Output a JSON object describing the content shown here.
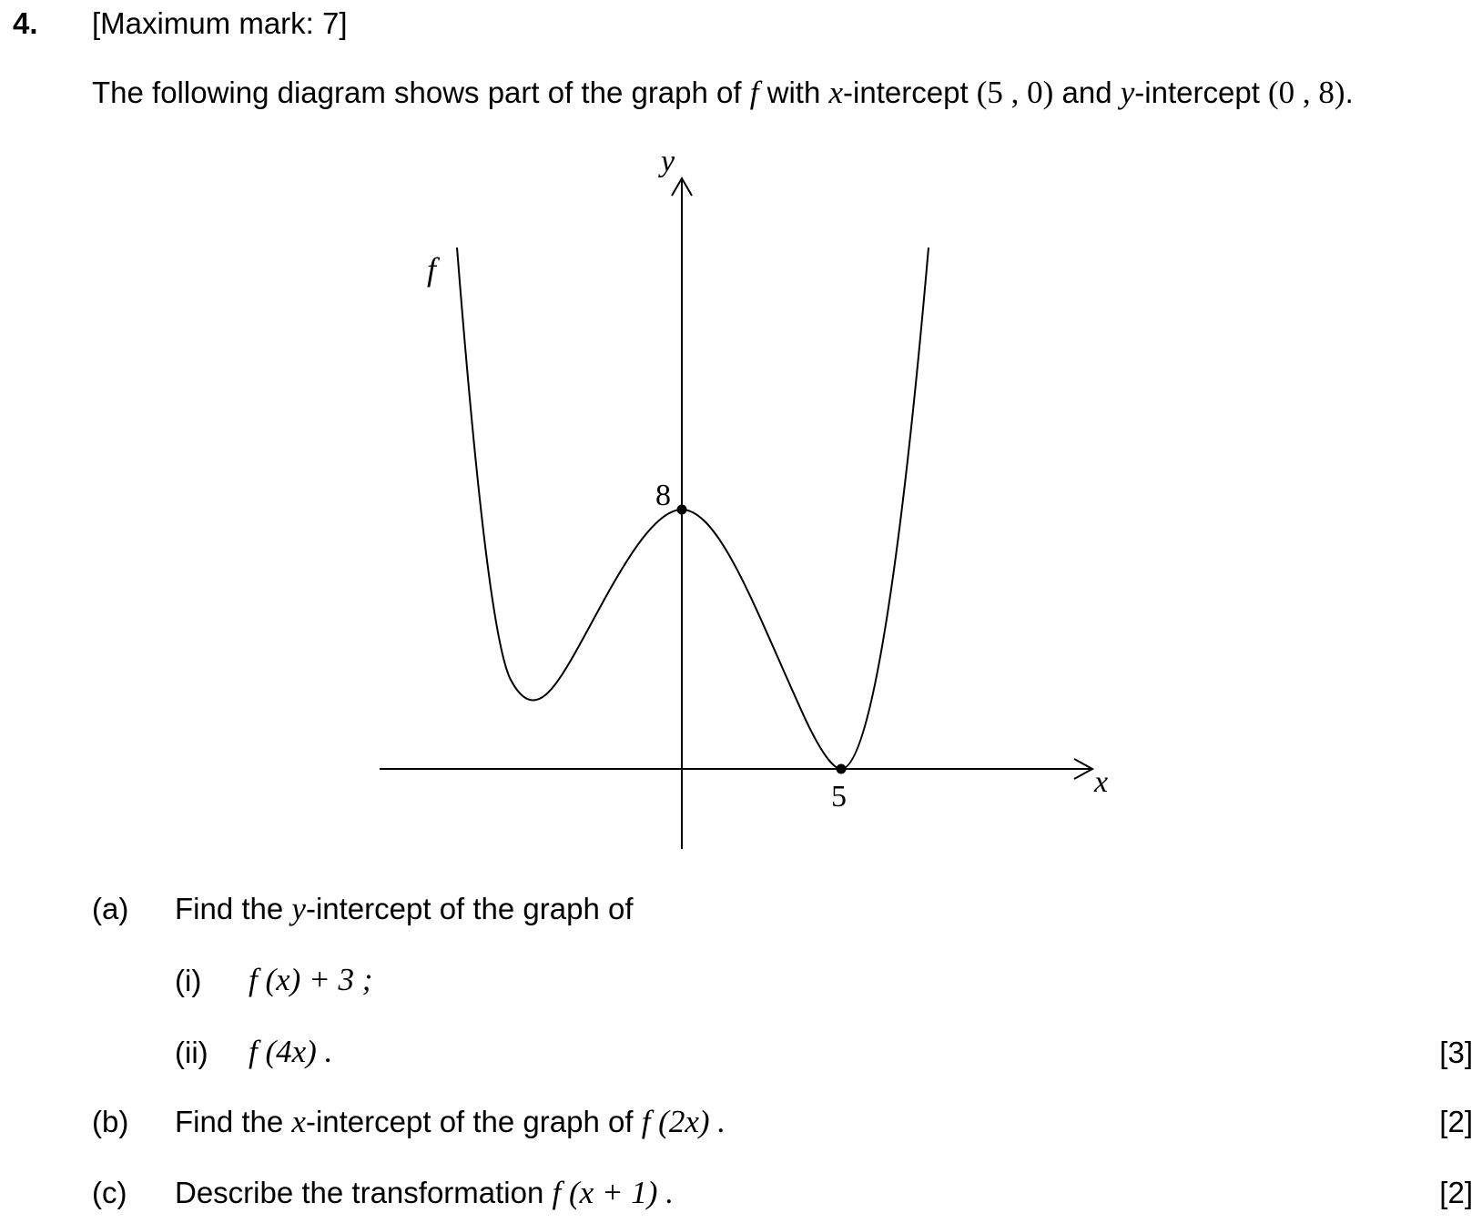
{
  "question": {
    "number": "4.",
    "max_mark": "[Maximum mark: 7]",
    "intro": {
      "t1": "The following diagram shows part of the graph of ",
      "f": "f",
      "t2": " with ",
      "x": "x",
      "t3": "-intercept ",
      "p1": "(5 , 0)",
      "t4": " and ",
      "y": "y",
      "t5": "-intercept ",
      "p2": "(0 , 8)",
      "t6": "."
    }
  },
  "graph": {
    "y_axis_label": "y",
    "x_axis_label": "x",
    "curve_label": "f",
    "y_intercept_label": "8",
    "x_intercept_label": "5"
  },
  "parts": {
    "a": {
      "label": "(a)",
      "t1": "Find the ",
      "y": "y",
      "t2": "-intercept of the graph of",
      "i": {
        "label": "(i)",
        "expr": "f (x) + 3 ;"
      },
      "ii": {
        "label": "(ii)",
        "expr": "f (4x) .",
        "marks": "[3]"
      }
    },
    "b": {
      "label": "(b)",
      "t1": "Find the ",
      "x": "x",
      "t2": "-intercept of the graph of ",
      "expr": "f (2x) .",
      "marks": "[2]"
    },
    "c": {
      "label": "(c)",
      "t1": "Describe the transformation ",
      "expr": "f (x + 1) .",
      "marks": "[2]"
    }
  },
  "chart_data": {
    "type": "line",
    "x_intercept": [
      5,
      0
    ],
    "y_intercept": [
      0,
      8
    ],
    "marked_points": [
      [
        0,
        8
      ],
      [
        5,
        0
      ]
    ],
    "ticks_labeled": {
      "x": [
        "5"
      ],
      "y": [
        "8"
      ]
    }
  }
}
